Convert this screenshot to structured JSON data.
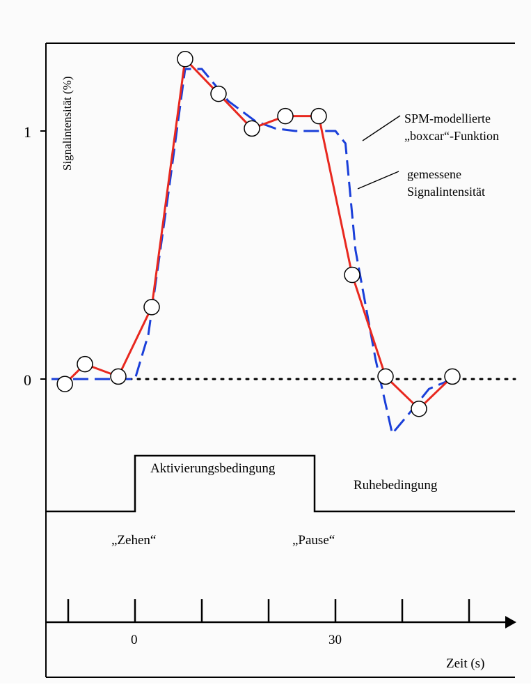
{
  "chart_data": {
    "type": "line",
    "ylabel": "Signalintensität  (%)",
    "xlabel": "Zeit (s)",
    "ytick_labels": [
      "1",
      "0"
    ],
    "xtick_labels": [
      "0",
      "30"
    ],
    "ylim": [
      -0.25,
      1.3
    ],
    "xlim": [
      -12.5,
      47.5
    ],
    "series": [
      {
        "name": "gemessene Signalintensität",
        "color": "#e8281f",
        "style": "solid",
        "markers": "open-circle",
        "x": [
          -10.5,
          -7.5,
          -2.5,
          2.5,
          7.5,
          12.5,
          17.5,
          22.5,
          27.5,
          32.5,
          37.5,
          42.5,
          47.5
        ],
        "y": [
          -0.02,
          0.06,
          0.01,
          0.29,
          1.29,
          1.15,
          1.01,
          1.06,
          1.06,
          0.42,
          0.01,
          -0.12,
          0.01
        ]
      },
      {
        "name": "SPM-modellierte „boxcar“-Funktion",
        "color": "#1a3fd9",
        "style": "dashed",
        "x": [
          -12.5,
          0,
          2,
          5,
          7.5,
          10,
          14,
          18,
          21,
          24,
          28,
          30,
          31.5,
          33,
          36,
          38.5,
          41,
          44,
          47.5
        ],
        "y": [
          0,
          0,
          0.18,
          0.75,
          1.25,
          1.25,
          1.12,
          1.04,
          1.01,
          1.0,
          1.0,
          1.0,
          0.95,
          0.52,
          0.08,
          -0.22,
          -0.14,
          -0.04,
          0
        ]
      }
    ],
    "annotations": {
      "boxcar_label": [
        "SPM-modellierte",
        "„boxcar“-Funktion"
      ],
      "measured_label": [
        "gemessene",
        "Signalintensität"
      ],
      "activation_label": "Aktivierungsbedingung",
      "rest_label": "Ruhebedingung",
      "zehen_label": "„Zehen“",
      "pause_label": "„Pause“"
    },
    "condition_blocks": [
      {
        "label": "Aktivierungsbedingung",
        "start": 0,
        "end": 27
      },
      {
        "label": "Ruhebedingung",
        "start": 27,
        "end": 47.5
      }
    ]
  }
}
